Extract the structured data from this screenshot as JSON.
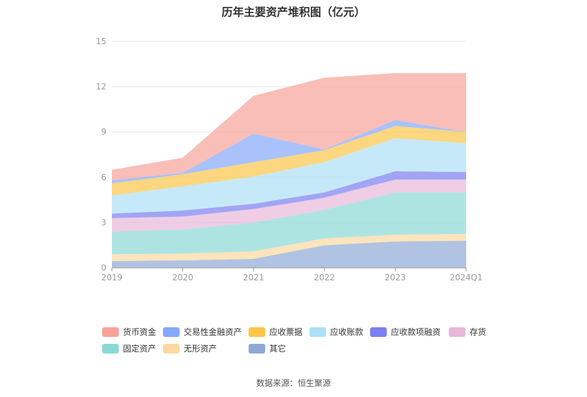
{
  "title": "历年主要资产堆积图（亿元）",
  "source": "数据来源：恒生聚源",
  "chart_data": {
    "type": "area",
    "stacked": true,
    "categories": [
      "2019",
      "2020",
      "2021",
      "2022",
      "2023",
      "2024Q1"
    ],
    "ylim": [
      0,
      15
    ],
    "yticks": [
      0,
      3,
      6,
      9,
      12,
      15
    ],
    "grid": true,
    "legend_position": "bottom",
    "series": [
      {
        "name": "其它",
        "color": "#8fa9d6",
        "values": [
          0.45,
          0.5,
          0.6,
          1.5,
          1.75,
          1.8
        ]
      },
      {
        "name": "无形资产",
        "color": "#fdd9a0",
        "values": [
          0.45,
          0.45,
          0.5,
          0.45,
          0.45,
          0.45
        ]
      },
      {
        "name": "固定资产",
        "color": "#8ad9d6",
        "values": [
          1.5,
          1.6,
          1.9,
          1.9,
          2.8,
          2.75
        ]
      },
      {
        "name": "存货",
        "color": "#e8b8da",
        "values": [
          0.9,
          0.85,
          0.9,
          0.8,
          0.85,
          0.85
        ]
      },
      {
        "name": "应收款项融资",
        "color": "#7b7ff0",
        "values": [
          0.3,
          0.4,
          0.35,
          0.35,
          0.55,
          0.5
        ]
      },
      {
        "name": "应收账款",
        "color": "#aee0f8",
        "values": [
          1.2,
          1.6,
          1.8,
          2.0,
          2.2,
          1.9
        ]
      },
      {
        "name": "应收票据",
        "color": "#fbc648",
        "values": [
          0.8,
          0.8,
          0.95,
          0.8,
          0.8,
          0.75
        ]
      },
      {
        "name": "交易性金融资产",
        "color": "#86a8fb",
        "values": [
          0.2,
          0.1,
          1.9,
          0.05,
          0.4,
          0.0
        ]
      },
      {
        "name": "货币资金",
        "color": "#f8a29a",
        "values": [
          0.7,
          1.0,
          2.5,
          4.75,
          3.1,
          3.9
        ]
      }
    ]
  },
  "legend_order": [
    "货币资金",
    "交易性金融资产",
    "应收票据",
    "应收账款",
    "应收款项融资",
    "存货",
    "固定资产",
    "无形资产",
    "其它"
  ]
}
